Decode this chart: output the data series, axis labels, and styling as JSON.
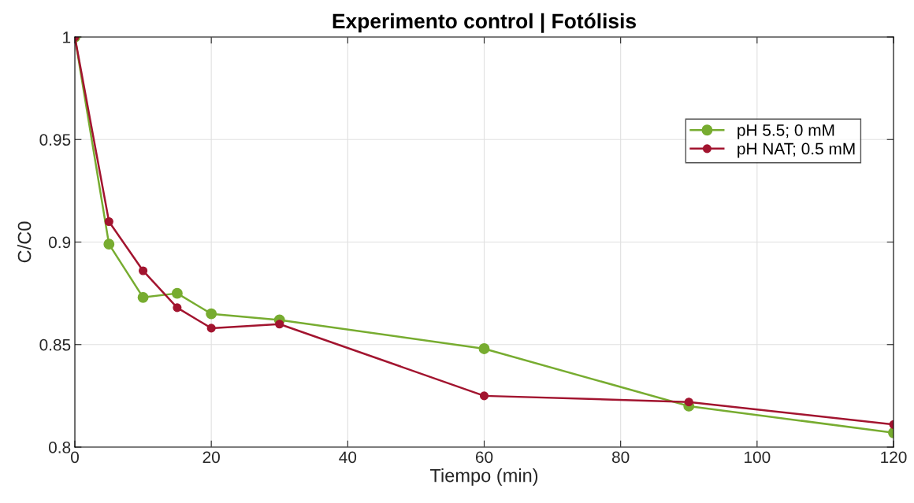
{
  "chart_data": {
    "type": "line",
    "title": "Experimento control | Fotólisis",
    "xlabel": "Tiempo (min)",
    "ylabel": "C/C0",
    "x": [
      0,
      5,
      10,
      15,
      20,
      30,
      60,
      90,
      120
    ],
    "series": [
      {
        "name": "pH 5.5; 0 mM",
        "color": "#77ac30",
        "values": [
          1,
          0.899,
          0.873,
          0.875,
          0.865,
          0.862,
          0.848,
          0.82,
          0.807
        ]
      },
      {
        "name": "pH NAT; 0.5 mM",
        "color": "#a2142f",
        "values": [
          1,
          0.91,
          0.886,
          0.868,
          0.858,
          0.86,
          0.825,
          0.822,
          0.811
        ]
      }
    ],
    "xlim": [
      0,
      120
    ],
    "xticks": [
      0,
      20,
      40,
      60,
      80,
      100,
      120
    ],
    "ylim": [
      0.8,
      1
    ],
    "yticks": [
      0.8,
      0.85,
      0.9,
      0.95,
      1
    ],
    "grid": true,
    "legend": "top right",
    "marker": "circle",
    "line_style": "solid"
  }
}
